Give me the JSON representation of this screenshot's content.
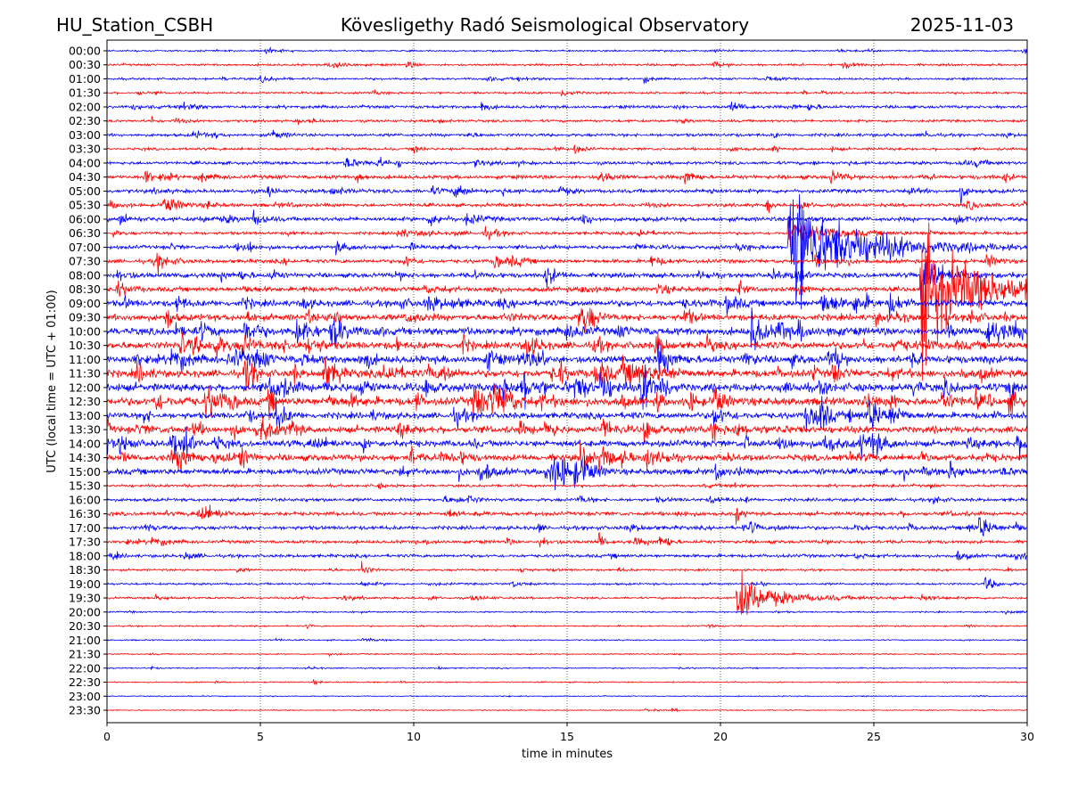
{
  "header": {
    "station": "HU_Station_CSBH",
    "title": "Kövesligethy Radó Seismological Observatory",
    "date": "2025-11-03"
  },
  "chart_data": {
    "type": "line",
    "title": "Kövesligethy Radó Seismological Observatory",
    "xlabel": "time in minutes",
    "ylabel": "UTC (local time = UTC + 01:00)",
    "xlim": [
      0,
      30
    ],
    "xticks": [
      "0",
      "5",
      "10",
      "15",
      "20",
      "25",
      "30"
    ],
    "grid": "vertical dotted at 5-minute steps",
    "colors": [
      "#0000ff",
      "#ff0000"
    ],
    "rows": [
      "00:00",
      "00:30",
      "01:00",
      "01:30",
      "02:00",
      "02:30",
      "03:00",
      "03:30",
      "04:00",
      "04:30",
      "05:00",
      "05:30",
      "06:00",
      "06:30",
      "07:00",
      "07:30",
      "08:00",
      "08:30",
      "09:00",
      "09:30",
      "10:00",
      "10:30",
      "11:00",
      "11:30",
      "12:00",
      "12:30",
      "13:00",
      "13:30",
      "14:00",
      "14:30",
      "15:00",
      "15:30",
      "16:00",
      "16:30",
      "17:00",
      "17:30",
      "18:00",
      "18:30",
      "19:00",
      "19:30",
      "20:00",
      "20:30",
      "21:00",
      "21:30",
      "22:00",
      "22:30",
      "23:00",
      "23:30"
    ],
    "noise_level": [
      0.08,
      0.1,
      0.1,
      0.1,
      0.14,
      0.12,
      0.14,
      0.12,
      0.15,
      0.18,
      0.18,
      0.16,
      0.2,
      0.14,
      0.18,
      0.18,
      0.22,
      0.22,
      0.3,
      0.3,
      0.35,
      0.35,
      0.35,
      0.35,
      0.38,
      0.38,
      0.3,
      0.32,
      0.3,
      0.3,
      0.28,
      0.12,
      0.15,
      0.18,
      0.18,
      0.15,
      0.15,
      0.1,
      0.1,
      0.1,
      0.07,
      0.07,
      0.06,
      0.06,
      0.06,
      0.06,
      0.05,
      0.05
    ],
    "events": [
      {
        "row": "07:00",
        "minute": 22.2,
        "amplitude": 4.2,
        "duration": 4.0
      },
      {
        "row": "06:30",
        "minute": 22.2,
        "amplitude": 1.0,
        "duration": 2.5
      },
      {
        "row": "08:30",
        "minute": 26.5,
        "amplitude": 4.0,
        "duration": 4.0
      },
      {
        "row": "08:00",
        "minute": 26.5,
        "amplitude": 1.0,
        "duration": 2.0
      },
      {
        "row": "19:30",
        "minute": 20.5,
        "amplitude": 1.6,
        "duration": 2.5
      },
      {
        "row": "17:00",
        "minute": 28.4,
        "amplitude": 0.8,
        "duration": 0.8
      },
      {
        "row": "19:00",
        "minute": 28.6,
        "amplitude": 0.4,
        "duration": 0.8
      },
      {
        "row": "14:30",
        "minute": 4.3,
        "amplitude": 1.0,
        "duration": 0.4
      },
      {
        "row": "11:30",
        "minute": 7.0,
        "amplitude": 1.6,
        "duration": 0.6
      },
      {
        "row": "12:30",
        "minute": 11.9,
        "amplitude": 1.2,
        "duration": 1.2
      },
      {
        "row": "10:00",
        "minute": 21.0,
        "amplitude": 1.2,
        "duration": 0.8
      },
      {
        "row": "09:30",
        "minute": 1.9,
        "amplitude": 1.2,
        "duration": 0.3
      },
      {
        "row": "12:30",
        "minute": 19.8,
        "amplitude": 1.0,
        "duration": 0.5
      },
      {
        "row": "11:30",
        "minute": 15.9,
        "amplitude": 1.0,
        "duration": 0.8
      },
      {
        "row": "05:30",
        "minute": 21.5,
        "amplitude": 0.8,
        "duration": 0.2
      },
      {
        "row": "05:00",
        "minute": 27.8,
        "amplitude": 0.8,
        "duration": 0.3
      },
      {
        "row": "02:00",
        "minute": 12.2,
        "amplitude": 0.6,
        "duration": 0.3
      },
      {
        "row": "18:30",
        "minute": 8.3,
        "amplitude": 0.7,
        "duration": 0.3
      },
      {
        "row": "17:30",
        "minute": 16.0,
        "amplitude": 0.8,
        "duration": 0.3
      },
      {
        "row": "16:30",
        "minute": 20.5,
        "amplitude": 0.6,
        "duration": 0.3
      }
    ]
  }
}
